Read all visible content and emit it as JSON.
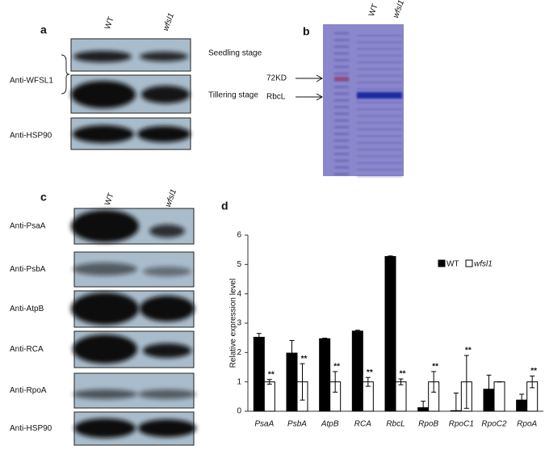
{
  "panel_a": {
    "label": "a",
    "lanes": [
      "WT",
      "wfsl1"
    ],
    "antibody_1": "Anti-WFSL1",
    "stages": [
      "Seedling stage",
      "Tillering stage"
    ],
    "antibody_2": "Anti-HSP90"
  },
  "panel_b": {
    "label": "b",
    "lanes": [
      "WT",
      "wfsl1"
    ],
    "markers": [
      "72KD",
      "RbcL"
    ]
  },
  "panel_c": {
    "label": "c",
    "lanes": [
      "WT",
      "wfsl1"
    ],
    "antibodies": [
      "Anti-PsaA",
      "Anti-PsbA",
      "Anti-AtpB",
      "Anti-RCA",
      "Anti-RpoA",
      "Anti-HSP90"
    ]
  },
  "chart_data": {
    "type": "bar",
    "panel_label": "d",
    "ylabel": "Relative expression level",
    "categories": [
      "PsaA",
      "PsbA",
      "AtpB",
      "RCA",
      "RbcL",
      "RpoB",
      "RpoC1",
      "RpoC2",
      "RpoA"
    ],
    "series": [
      {
        "name": "WT",
        "color": "#000000",
        "values": [
          2.52,
          1.98,
          2.47,
          2.73,
          5.27,
          0.12,
          0.02,
          0.75,
          0.38
        ],
        "errors": [
          0.13,
          0.43,
          0.02,
          0.03,
          0.02,
          0.22,
          0.6,
          0.48,
          0.2
        ]
      },
      {
        "name": "wfsl1",
        "color": "#ffffff",
        "values": [
          1.0,
          1.0,
          1.0,
          1.0,
          1.0,
          1.0,
          1.0,
          1.0,
          1.0
        ],
        "errors": [
          0.08,
          0.62,
          0.35,
          0.15,
          0.1,
          0.35,
          0.9,
          0.0,
          0.2
        ]
      }
    ],
    "annotations": [
      "**",
      "**",
      "**",
      "**",
      "**",
      "**",
      "**",
      null,
      "**"
    ],
    "ylim": [
      0,
      6
    ],
    "yticks": [
      0,
      1,
      2,
      3,
      4,
      5,
      6
    ],
    "legend": "upper right"
  }
}
